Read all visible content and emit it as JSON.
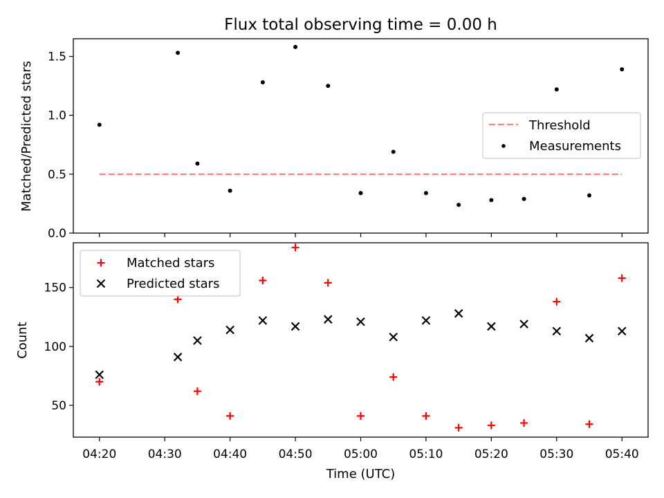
{
  "title": "Flux total observing time = 0.00 h",
  "colors": {
    "threshold": "#ff8080",
    "measurements": "#000000",
    "matched": "#ff0000",
    "predicted": "#000000"
  },
  "chart_data": [
    {
      "type": "scatter",
      "title": "Flux total observing time = 0.00 h",
      "xlabel": "",
      "ylabel": "Matched/Predicted stars",
      "xlim": [
        "04:16",
        "05:44"
      ],
      "ylim": [
        0,
        1.65
      ],
      "yticks": [
        0.0,
        0.5,
        1.0,
        1.5
      ],
      "ytick_labels": [
        "0.0",
        "0.5",
        "1.0",
        "1.5"
      ],
      "legend_position": "center-right",
      "grid": false,
      "threshold": {
        "name": "Threshold",
        "value": 0.5,
        "x_range": [
          "04:20",
          "05:40"
        ],
        "style": "dashed"
      },
      "series": [
        {
          "name": "Measurements",
          "marker": "dot",
          "points": [
            {
              "x": "04:20",
              "y": 0.92
            },
            {
              "x": "04:32",
              "y": 1.53
            },
            {
              "x": "04:35",
              "y": 0.59
            },
            {
              "x": "04:40",
              "y": 0.36
            },
            {
              "x": "04:45",
              "y": 1.28
            },
            {
              "x": "04:50",
              "y": 1.58
            },
            {
              "x": "04:55",
              "y": 1.25
            },
            {
              "x": "05:00",
              "y": 0.34
            },
            {
              "x": "05:05",
              "y": 0.69
            },
            {
              "x": "05:10",
              "y": 0.34
            },
            {
              "x": "05:15",
              "y": 0.24
            },
            {
              "x": "05:20",
              "y": 0.28
            },
            {
              "x": "05:25",
              "y": 0.29
            },
            {
              "x": "05:30",
              "y": 1.22
            },
            {
              "x": "05:35",
              "y": 0.32
            },
            {
              "x": "05:40",
              "y": 1.39
            }
          ]
        }
      ]
    },
    {
      "type": "scatter",
      "title": "",
      "xlabel": "Time (UTC)",
      "ylabel": "Count",
      "xlim": [
        "04:16",
        "05:44"
      ],
      "ylim": [
        23,
        188
      ],
      "yticks": [
        50,
        100,
        150
      ],
      "ytick_labels": [
        "50",
        "100",
        "150"
      ],
      "xticks": [
        "04:20",
        "04:30",
        "04:40",
        "04:50",
        "05:00",
        "05:10",
        "05:20",
        "05:30",
        "05:40"
      ],
      "legend_position": "top-left",
      "grid": false,
      "series": [
        {
          "name": "Matched stars",
          "marker": "plus",
          "points": [
            {
              "x": "04:20",
              "y": 70
            },
            {
              "x": "04:32",
              "y": 140
            },
            {
              "x": "04:35",
              "y": 62
            },
            {
              "x": "04:40",
              "y": 41
            },
            {
              "x": "04:45",
              "y": 156
            },
            {
              "x": "04:50",
              "y": 184
            },
            {
              "x": "04:55",
              "y": 154
            },
            {
              "x": "05:00",
              "y": 41
            },
            {
              "x": "05:05",
              "y": 74
            },
            {
              "x": "05:10",
              "y": 41
            },
            {
              "x": "05:15",
              "y": 31
            },
            {
              "x": "05:20",
              "y": 33
            },
            {
              "x": "05:25",
              "y": 35
            },
            {
              "x": "05:30",
              "y": 138
            },
            {
              "x": "05:35",
              "y": 34
            },
            {
              "x": "05:40",
              "y": 158
            }
          ]
        },
        {
          "name": "Predicted stars",
          "marker": "x",
          "points": [
            {
              "x": "04:20",
              "y": 76
            },
            {
              "x": "04:32",
              "y": 91
            },
            {
              "x": "04:35",
              "y": 105
            },
            {
              "x": "04:40",
              "y": 114
            },
            {
              "x": "04:45",
              "y": 122
            },
            {
              "x": "04:50",
              "y": 117
            },
            {
              "x": "04:55",
              "y": 123
            },
            {
              "x": "05:00",
              "y": 121
            },
            {
              "x": "05:05",
              "y": 108
            },
            {
              "x": "05:10",
              "y": 122
            },
            {
              "x": "05:15",
              "y": 128
            },
            {
              "x": "05:20",
              "y": 117
            },
            {
              "x": "05:25",
              "y": 119
            },
            {
              "x": "05:30",
              "y": 113
            },
            {
              "x": "05:35",
              "y": 107
            },
            {
              "x": "05:40",
              "y": 113
            }
          ]
        }
      ]
    }
  ]
}
